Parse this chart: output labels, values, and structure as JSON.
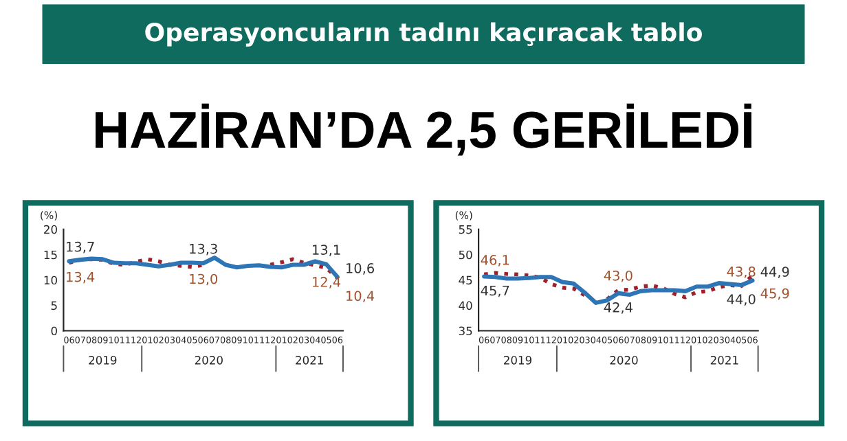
{
  "chart_data": [
    {
      "type": "line",
      "title": "Operasyoncuların tadını kaçıracak tablo",
      "subtitle": "HAZİRAN’DA 2,5 GERİLEDİ",
      "ylabel": "(%)",
      "categories": [
        "06",
        "07",
        "08",
        "09",
        "10",
        "11",
        "12",
        "01",
        "02",
        "03",
        "04",
        "05",
        "06",
        "07",
        "08",
        "09",
        "10",
        "11",
        "12",
        "01",
        "02",
        "03",
        "04",
        "05",
        "06"
      ],
      "annotations": [
        "2019",
        "2020",
        "2021"
      ],
      "ylim": [
        0,
        20
      ],
      "yticks": [
        0,
        5,
        10,
        15,
        20
      ],
      "grid": false,
      "series": [
        {
          "color": "#2e75b6",
          "line_style": "solid",
          "values": [
            13.7,
            14.0,
            14.2,
            14.1,
            13.4,
            13.3,
            13.3,
            13.0,
            12.7,
            13.0,
            13.4,
            13.4,
            13.3,
            14.4,
            13.0,
            12.5,
            12.8,
            12.9,
            12.6,
            12.5,
            13.0,
            13.0,
            13.7,
            13.1,
            10.6
          ],
          "value_labels": [
            "13,7",
            null,
            null,
            null,
            null,
            null,
            null,
            null,
            null,
            null,
            null,
            null,
            "13,3",
            null,
            null,
            null,
            null,
            null,
            null,
            null,
            null,
            null,
            null,
            "13,1",
            "10,6"
          ]
        },
        {
          "color": "#a0202a",
          "line_style": "dotted",
          "values": [
            13.4,
            14.0,
            14.1,
            14.0,
            13.2,
            13.0,
            13.6,
            14.1,
            13.7,
            13.0,
            12.8,
            12.6,
            13.0,
            null,
            null,
            null,
            null,
            null,
            13.0,
            13.5,
            14.1,
            13.4,
            12.9,
            12.4,
            10.4
          ],
          "value_labels": [
            "13,4",
            null,
            null,
            null,
            null,
            null,
            null,
            null,
            null,
            null,
            null,
            null,
            "13,0",
            null,
            null,
            null,
            null,
            null,
            null,
            null,
            null,
            null,
            null,
            "12,4",
            "10,4"
          ]
        }
      ]
    },
    {
      "type": "line",
      "ylabel": "(%)",
      "categories": [
        "06",
        "07",
        "08",
        "09",
        "10",
        "11",
        "12",
        "01",
        "02",
        "03",
        "04",
        "05",
        "06",
        "07",
        "08",
        "09",
        "10",
        "11",
        "12",
        "01",
        "02",
        "03",
        "04",
        "05",
        "06"
      ],
      "annotations": [
        "2019",
        "2020",
        "2021"
      ],
      "ylim": [
        35,
        55
      ],
      "yticks": [
        35,
        40,
        45,
        50,
        55
      ],
      "grid": false,
      "series": [
        {
          "color": "#2e75b6",
          "line_style": "solid",
          "values": [
            45.7,
            45.6,
            45.3,
            45.3,
            45.4,
            45.6,
            45.6,
            44.6,
            44.3,
            42.5,
            40.5,
            41.0,
            42.4,
            42.1,
            42.8,
            43.0,
            43.0,
            43.0,
            42.8,
            43.7,
            43.7,
            44.4,
            44.2,
            44.0,
            44.9
          ],
          "value_labels": [
            "45,7",
            null,
            null,
            null,
            null,
            null,
            null,
            null,
            null,
            null,
            null,
            null,
            "42,4",
            null,
            null,
            null,
            null,
            null,
            null,
            null,
            null,
            null,
            null,
            "44,0",
            "44,9"
          ]
        },
        {
          "color": "#a0202a",
          "line_style": "dotted",
          "values": [
            46.1,
            46.4,
            46.2,
            46.1,
            45.9,
            45.5,
            44.2,
            43.5,
            43.3,
            42.0,
            null,
            41.2,
            43.0,
            43.1,
            43.7,
            43.9,
            43.4,
            42.3,
            41.6,
            42.6,
            42.8,
            43.6,
            44.0,
            43.8,
            45.9
          ],
          "value_labels": [
            "46,1",
            null,
            null,
            null,
            null,
            null,
            null,
            null,
            null,
            null,
            null,
            null,
            "43,0",
            null,
            null,
            null,
            null,
            null,
            null,
            null,
            null,
            null,
            null,
            "43,8",
            "45,9"
          ]
        }
      ]
    }
  ]
}
